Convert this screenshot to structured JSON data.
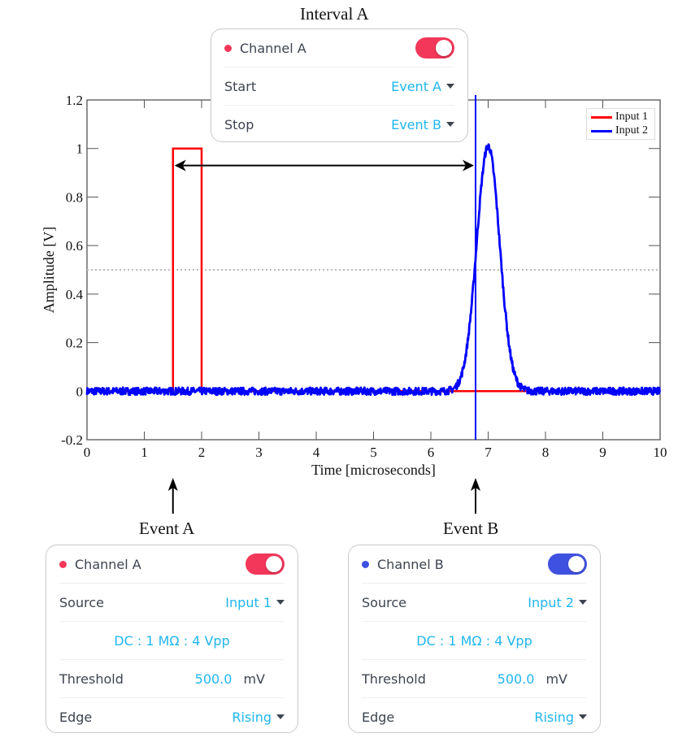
{
  "colors": {
    "input1": "#ff0000",
    "input2": "#0000ff",
    "channel_a": "#f2375a",
    "channel_b": "#3f51e0",
    "value_text": "#1fb6f0",
    "threshold_line": "#bbbbbb",
    "arrow": "#000000"
  },
  "annotations": {
    "interval_title": "Interval A",
    "event_a": "Event A",
    "event_b": "Event B"
  },
  "interval_card": {
    "channel": "Channel A",
    "enabled": true,
    "rows": [
      {
        "label": "Start",
        "value": "Event A"
      },
      {
        "label": "Stop",
        "value": "Event B"
      }
    ]
  },
  "event_cards": [
    {
      "channel": "Channel A",
      "enabled": true,
      "source_label": "Source",
      "source_value": "Input 1",
      "coupling": "DC : 1 MΩ : 4 Vpp",
      "threshold_label": "Threshold",
      "threshold_value": "500.0",
      "threshold_unit": "mV",
      "edge_label": "Edge",
      "edge_value": "Rising"
    },
    {
      "channel": "Channel B",
      "enabled": true,
      "source_label": "Source",
      "source_value": "Input 2",
      "coupling": "DC : 1 MΩ : 4 Vpp",
      "threshold_label": "Threshold",
      "threshold_value": "500.0",
      "threshold_unit": "mV",
      "edge_label": "Edge",
      "edge_value": "Rising"
    }
  ],
  "chart_data": {
    "type": "line",
    "title": "",
    "xlabel": "Time [microseconds]",
    "ylabel": "Amplitude [V]",
    "xlim": [
      0,
      10
    ],
    "ylim": [
      -0.2,
      1.2
    ],
    "xticks": [
      0,
      1,
      2,
      3,
      4,
      5,
      6,
      7,
      8,
      9,
      10
    ],
    "xtick_labels": [
      "0",
      "1",
      "2",
      "3",
      "4",
      "5",
      "6",
      "7",
      "8",
      "9",
      "10"
    ],
    "yticks": [
      -0.2,
      0,
      0.2,
      0.4,
      0.6,
      0.8,
      1,
      1.2
    ],
    "ytick_labels": [
      "-0.2",
      "0",
      "0.2",
      "0.4",
      "0.6",
      "0.8",
      "1",
      "1.2"
    ],
    "grid": false,
    "legend": {
      "position": "top-right",
      "entries": [
        "Input 1",
        "Input 2"
      ]
    },
    "threshold": 0.5,
    "series": [
      {
        "name": "Input 1",
        "kind": "square pulse",
        "x": [
          0.0,
          1.5,
          1.5,
          2.0,
          2.0,
          10.0
        ],
        "y": [
          0.0,
          0.0,
          1.0,
          1.0,
          0.0,
          0.0
        ]
      },
      {
        "name": "Input 2",
        "kind": "gaussian pulse with noise",
        "peak_time": 7.0,
        "peak_amplitude": 1.01,
        "sigma": 0.2,
        "noise_amplitude": 0.015,
        "baseline": 0.0
      }
    ],
    "markers": {
      "event_a_time": 1.5,
      "event_b_time": 6.78,
      "interval_arrow_level": 0.93
    }
  }
}
